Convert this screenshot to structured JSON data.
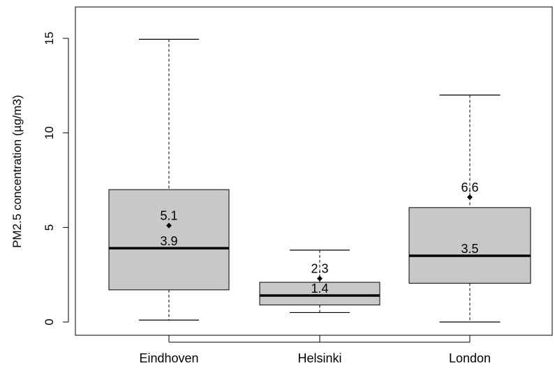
{
  "chart_data": {
    "type": "boxplot",
    "categories": [
      "Eindhoven",
      "Helsinki",
      "London"
    ],
    "ylabel": "PM2.5 concentration (µg/m3)",
    "ylim": [
      -0.7,
      16.3
    ],
    "yticks": [
      0,
      5,
      10,
      15
    ],
    "ytick_labels": [
      "0",
      "5",
      "10",
      "15"
    ],
    "boxes": [
      {
        "category": "Eindhoven",
        "whisker_low": 0.1,
        "q1": 1.7,
        "median": 3.9,
        "q3": 7.0,
        "whisker_high": 14.95,
        "mean": 5.1,
        "mean_label": "5.1",
        "median_label": "3.9"
      },
      {
        "category": "Helsinki",
        "whisker_low": 0.5,
        "q1": 0.9,
        "median": 1.4,
        "q3": 2.1,
        "whisker_high": 3.8,
        "mean": 2.3,
        "mean_label": "2.3",
        "median_label": "1.4"
      },
      {
        "category": "London",
        "whisker_low": 0.0,
        "q1": 2.05,
        "median": 3.5,
        "q3": 6.05,
        "whisker_high": 12.0,
        "mean": 6.6,
        "mean_label": "6.6",
        "median_label": "3.5"
      }
    ],
    "grid": false,
    "box_fill": "#c8c8c8",
    "median_color": "#000000",
    "mean_marker": "diamond"
  }
}
